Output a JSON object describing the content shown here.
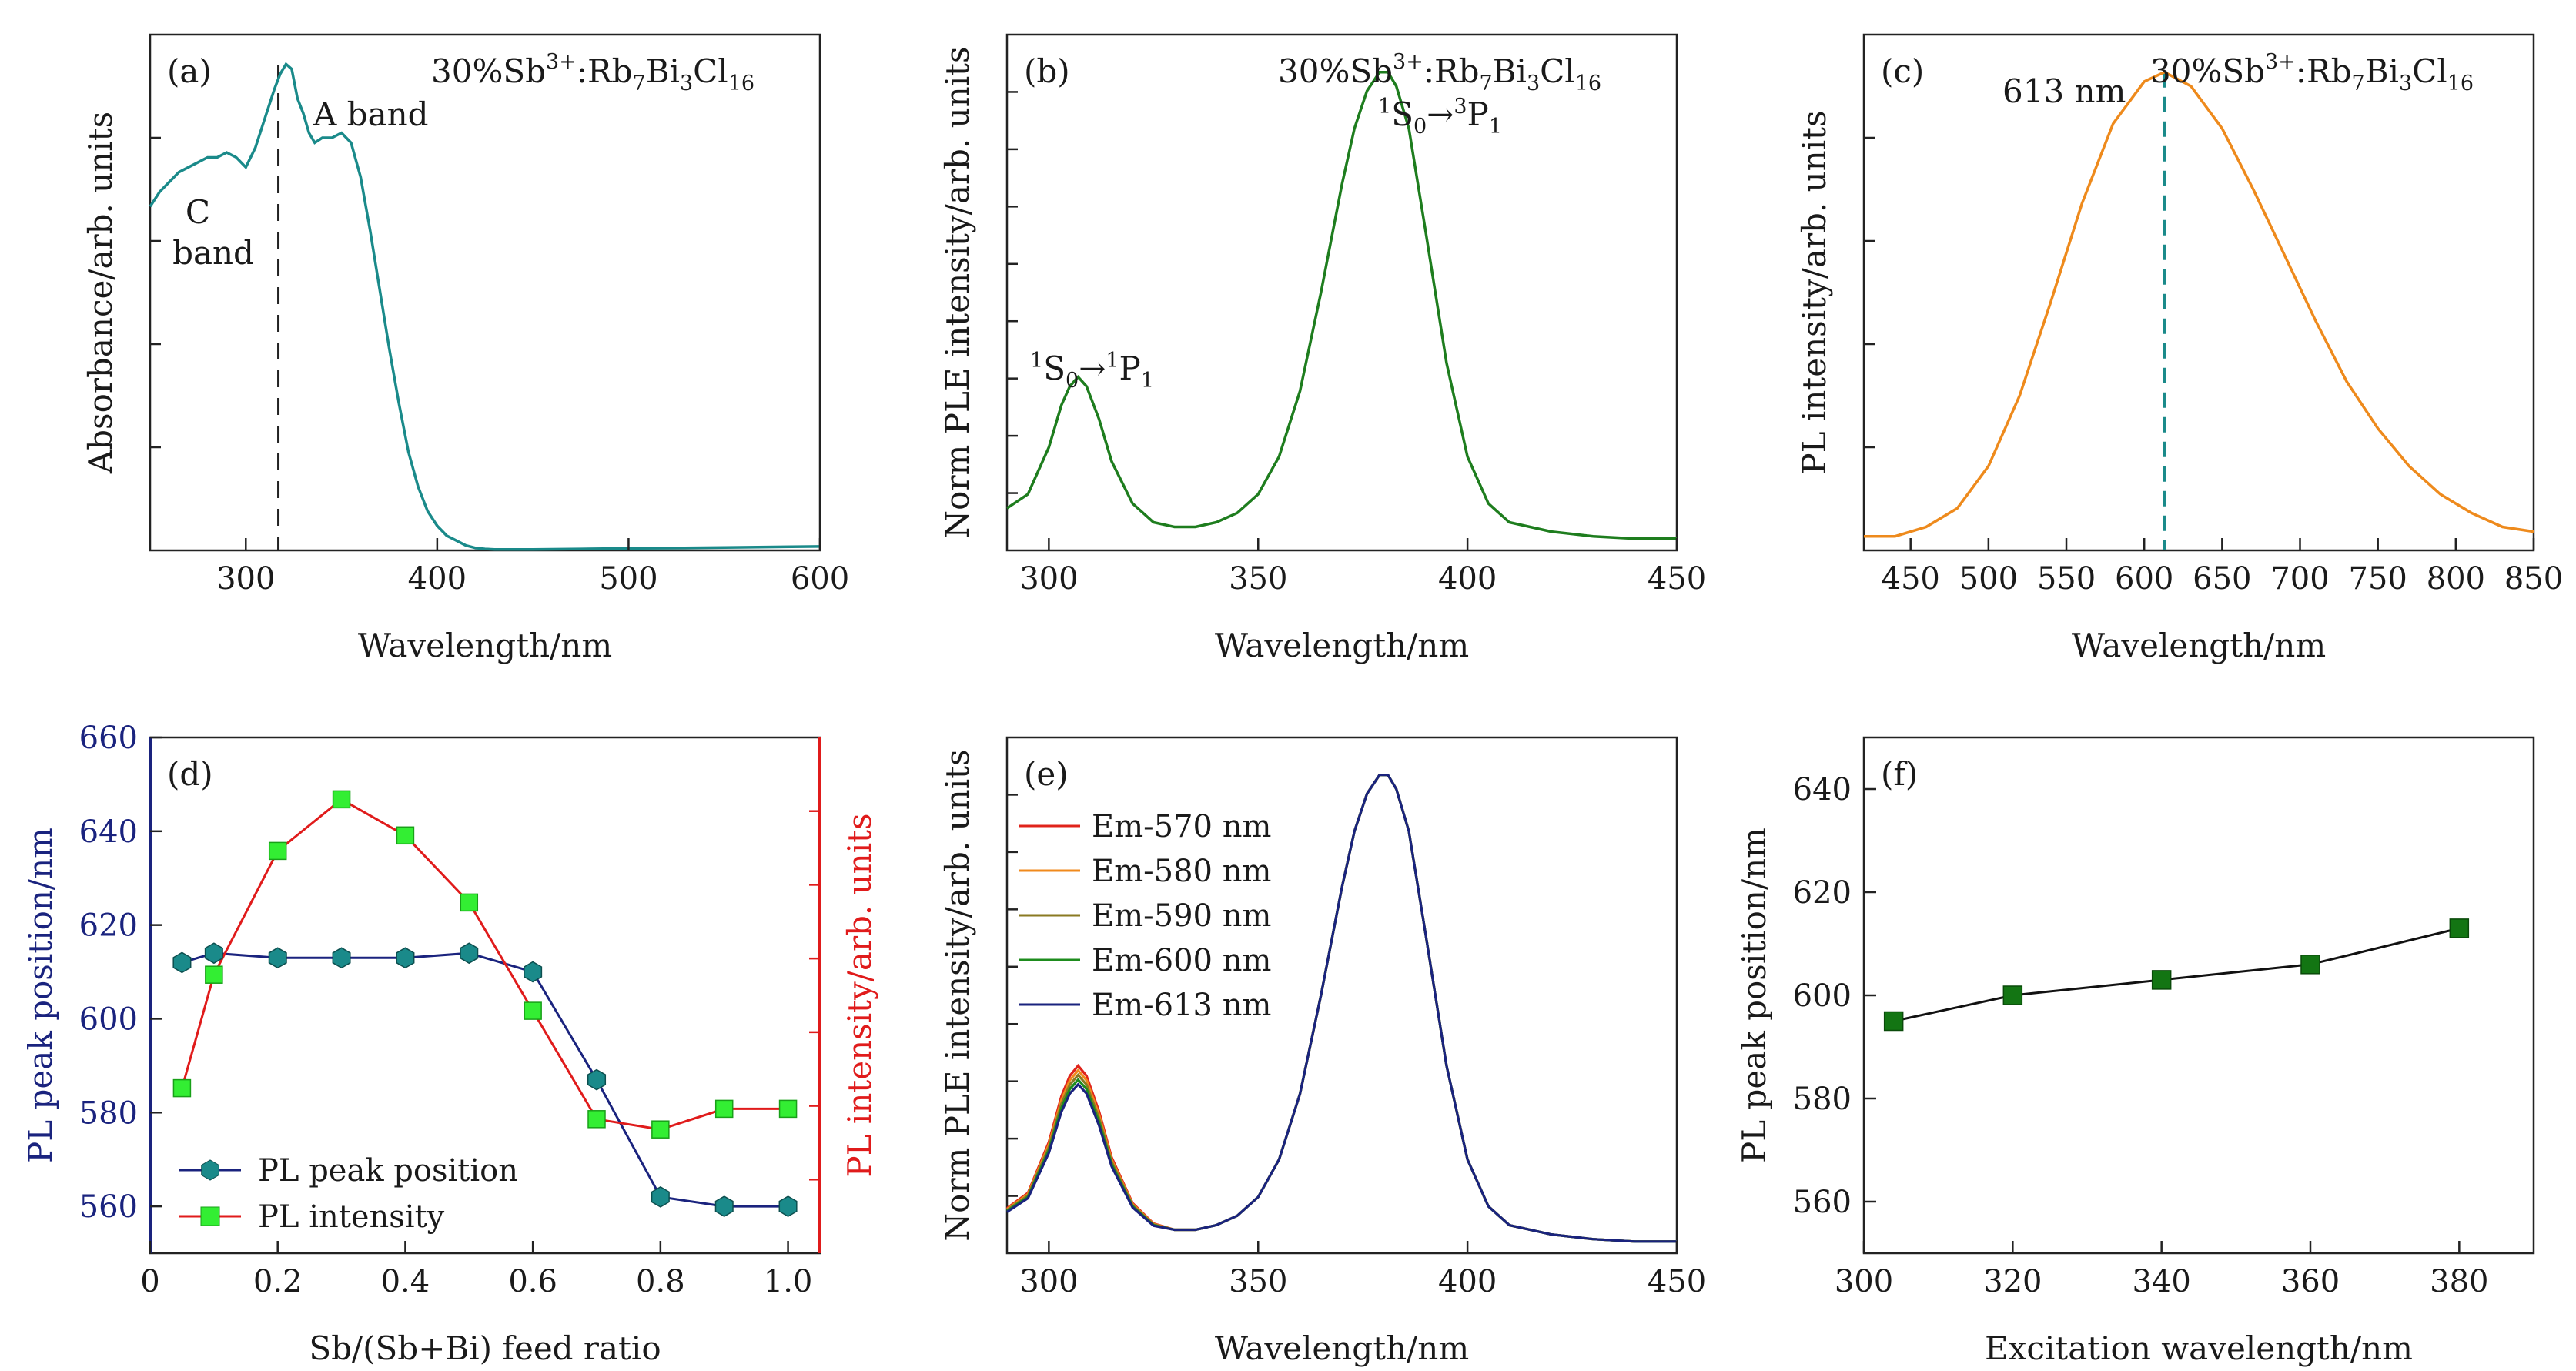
{
  "colors": {
    "teal": "#1a8a8a",
    "green": "#1e7d1e",
    "orange": "#ee8a1c",
    "navy": "#1a237e",
    "red": "#e01b1b",
    "lime": "#33ee33",
    "dark_green": "#137513",
    "em570": "#e0241b",
    "em580": "#f08a1c",
    "em590": "#8a7a22",
    "em600": "#1e8c1e",
    "em613": "#1a237e"
  },
  "chart_data": [
    {
      "id": "a",
      "type": "line",
      "panel_label": "(a)",
      "compound": {
        "pre": "30%Sb",
        "sup": "3+",
        "mid": ":Rb",
        "s1": "7",
        "m2": "Bi",
        "s2": "3",
        "m3": "Cl",
        "s3": "16"
      },
      "xlabel": "Wavelength/nm",
      "ylabel": "Absorbance/arb. units",
      "xlim": [
        250,
        600
      ],
      "xticks": [
        300,
        400,
        500,
        600
      ],
      "ylim": [
        0,
        1.05
      ],
      "y_tick_labels": "none",
      "marker_line_x": 317,
      "annotations": [
        "A band",
        "C",
        "band"
      ],
      "series": [
        {
          "x": [
            250,
            255,
            260,
            265,
            270,
            275,
            280,
            285,
            290,
            295,
            300,
            305,
            310,
            315,
            318,
            321,
            324,
            327,
            330,
            333,
            336,
            340,
            345,
            350,
            355,
            360,
            365,
            370,
            375,
            380,
            385,
            390,
            395,
            400,
            405,
            410,
            415,
            420,
            425,
            430,
            440,
            450,
            475,
            500,
            550,
            600
          ],
          "y": [
            0.7,
            0.73,
            0.75,
            0.77,
            0.78,
            0.79,
            0.8,
            0.8,
            0.81,
            0.8,
            0.78,
            0.82,
            0.88,
            0.94,
            0.97,
            0.99,
            0.98,
            0.92,
            0.89,
            0.85,
            0.83,
            0.84,
            0.84,
            0.85,
            0.83,
            0.76,
            0.65,
            0.53,
            0.41,
            0.3,
            0.2,
            0.13,
            0.08,
            0.05,
            0.03,
            0.02,
            0.01,
            0.005,
            0.003,
            0.002,
            0.002,
            0.002,
            0.003,
            0.004,
            0.006,
            0.008
          ]
        }
      ]
    },
    {
      "id": "b",
      "type": "line",
      "panel_label": "(b)",
      "compound": {
        "pre": "30%Sb",
        "sup": "3+",
        "mid": ":Rb",
        "s1": "7",
        "m2": "Bi",
        "s2": "3",
        "m3": "Cl",
        "s3": "16"
      },
      "xlabel": "Wavelength/nm",
      "ylabel": "Norm PLE intensity/arb. units",
      "xlim": [
        290,
        450
      ],
      "xticks": [
        300,
        350,
        400,
        450
      ],
      "ylim": [
        -0.02,
        1.08
      ],
      "y_tick_labels": "none",
      "transitions": [
        {
          "a": "1",
          "b": "S",
          "c": "0",
          "arrow": "→",
          "d": "3",
          "e": "P",
          "f": "1"
        },
        {
          "a": "1",
          "b": "S",
          "c": "0",
          "arrow": "→",
          "d": "1",
          "e": "P",
          "f": "1"
        }
      ],
      "series": [
        {
          "x": [
            290,
            295,
            300,
            303,
            305,
            307,
            309,
            312,
            315,
            320,
            325,
            330,
            335,
            340,
            345,
            350,
            355,
            360,
            365,
            370,
            373,
            376,
            379,
            381,
            383,
            386,
            390,
            395,
            400,
            405,
            410,
            420,
            430,
            440,
            450
          ],
          "y": [
            0.07,
            0.1,
            0.2,
            0.29,
            0.33,
            0.35,
            0.33,
            0.26,
            0.17,
            0.08,
            0.04,
            0.03,
            0.03,
            0.04,
            0.06,
            0.1,
            0.18,
            0.32,
            0.53,
            0.76,
            0.88,
            0.96,
            1.0,
            1.0,
            0.97,
            0.88,
            0.66,
            0.38,
            0.18,
            0.08,
            0.04,
            0.02,
            0.01,
            0.005,
            0.005
          ]
        }
      ]
    },
    {
      "id": "c",
      "type": "line",
      "panel_label": "(c)",
      "compound": {
        "pre": "30%Sb",
        "sup": "3+",
        "mid": ":Rb",
        "s1": "7",
        "m2": "Bi",
        "s2": "3",
        "m3": "Cl",
        "s3": "16"
      },
      "xlabel": "Wavelength/nm",
      "ylabel": "PL intensity/arb. units",
      "xlim": [
        420,
        850
      ],
      "xticks": [
        450,
        500,
        550,
        600,
        650,
        700,
        750,
        800,
        850
      ],
      "ylim": [
        -0.02,
        1.08
      ],
      "y_tick_labels": "none",
      "peak_label": "613 nm",
      "peak_x": 613,
      "series": [
        {
          "x": [
            420,
            440,
            460,
            480,
            500,
            520,
            540,
            560,
            580,
            600,
            613,
            630,
            650,
            670,
            690,
            710,
            730,
            750,
            770,
            790,
            810,
            830,
            850
          ],
          "y": [
            0.01,
            0.01,
            0.03,
            0.07,
            0.16,
            0.31,
            0.51,
            0.72,
            0.89,
            0.98,
            1.0,
            0.97,
            0.88,
            0.75,
            0.61,
            0.47,
            0.34,
            0.24,
            0.16,
            0.1,
            0.06,
            0.03,
            0.02
          ]
        }
      ]
    },
    {
      "id": "d",
      "type": "line",
      "panel_label": "(d)",
      "xlabel": "Sb/(Sb+Bi) feed ratio",
      "ylabel": "PL peak position/nm",
      "ylabel_right": "PL intensity/arb. units",
      "xlim": [
        0,
        1.05
      ],
      "xticks": [
        0,
        0.2,
        0.4,
        0.6,
        0.8,
        1.0
      ],
      "x_tick_labels": [
        "0",
        "0.2",
        "0.4",
        "0.6",
        "0.8",
        "1.0"
      ],
      "ylim": [
        550,
        660
      ],
      "yticks": [
        560,
        580,
        600,
        620,
        640,
        660
      ],
      "legend_position": "bottom-left",
      "series": [
        {
          "name": "PL peak position",
          "axis": "left",
          "marker": "hexagon",
          "x": [
            0.05,
            0.1,
            0.2,
            0.3,
            0.4,
            0.5,
            0.6,
            0.7,
            0.8,
            0.9,
            1.0
          ],
          "y": [
            612,
            614,
            613,
            613,
            613,
            614,
            610,
            587,
            562,
            560,
            560
          ]
        },
        {
          "name": "PL intensity",
          "axis": "right",
          "marker": "square",
          "right_ylim": [
            0,
            1.0
          ],
          "x": [
            0.05,
            0.1,
            0.2,
            0.3,
            0.4,
            0.5,
            0.6,
            0.7,
            0.8,
            0.9,
            1.0
          ],
          "y": [
            0.32,
            0.54,
            0.78,
            0.88,
            0.81,
            0.68,
            0.47,
            0.26,
            0.24,
            0.28,
            0.28
          ]
        }
      ]
    },
    {
      "id": "e",
      "type": "line",
      "panel_label": "(e)",
      "xlabel": "Wavelength/nm",
      "ylabel": "Norm PLE intensity/arb. units",
      "xlim": [
        290,
        450
      ],
      "xticks": [
        300,
        350,
        400,
        450
      ],
      "ylim": [
        -0.02,
        1.08
      ],
      "y_tick_labels": "none",
      "legend_position": "top-left",
      "x": [
        290,
        295,
        300,
        303,
        305,
        307,
        309,
        312,
        315,
        320,
        325,
        330,
        335,
        340,
        345,
        350,
        355,
        360,
        365,
        370,
        373,
        376,
        379,
        381,
        383,
        386,
        390,
        395,
        400,
        405,
        410,
        420,
        430,
        440,
        450
      ],
      "series": [
        {
          "name": "Em-570 nm",
          "peak1": 0.38
        },
        {
          "name": "Em-580 nm",
          "peak1": 0.37
        },
        {
          "name": "Em-590 nm",
          "peak1": 0.36
        },
        {
          "name": "Em-600 nm",
          "peak1": 0.35
        },
        {
          "name": "Em-613 nm",
          "peak1": 0.34
        }
      ],
      "base_y": [
        0.07,
        0.1,
        0.2,
        0.29,
        0.33,
        0.35,
        0.33,
        0.26,
        0.17,
        0.08,
        0.04,
        0.03,
        0.03,
        0.04,
        0.06,
        0.1,
        0.18,
        0.32,
        0.53,
        0.76,
        0.88,
        0.96,
        1.0,
        1.0,
        0.97,
        0.88,
        0.66,
        0.38,
        0.18,
        0.08,
        0.04,
        0.02,
        0.01,
        0.005,
        0.005
      ]
    },
    {
      "id": "f",
      "type": "line",
      "panel_label": "(f)",
      "xlabel": "Excitation wavelength/nm",
      "ylabel": "PL peak position/nm",
      "xlim": [
        300,
        390
      ],
      "xticks": [
        300,
        320,
        340,
        360,
        380
      ],
      "ylim": [
        550,
        650
      ],
      "yticks": [
        560,
        580,
        600,
        620,
        640
      ],
      "series": [
        {
          "marker": "square",
          "x": [
            304,
            320,
            340,
            360,
            380
          ],
          "y": [
            595,
            600,
            603,
            606,
            613
          ]
        }
      ]
    }
  ]
}
